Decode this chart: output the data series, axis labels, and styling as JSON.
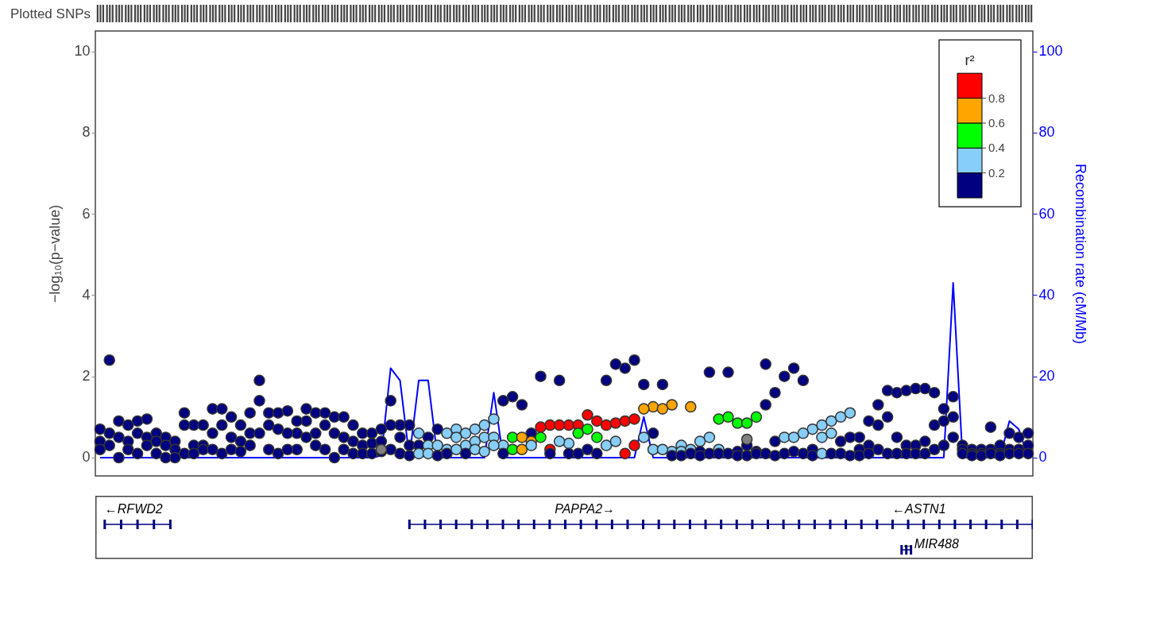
{
  "chart_data": {
    "type": "scatter",
    "ylabel": "−log₁₀(p−value)",
    "y2label": "Recombination rate (cM/Mb)",
    "clabel": "r²",
    "colors": [
      "#000080",
      "#87cefa",
      "#00ff00",
      "#ffa500",
      "#ff0000"
    ],
    "annotations": [
      "Plotted SNPs",
      "←RFWD2",
      "PAPPA2→",
      "←ASTN1",
      "←MIR488",
      "0.2",
      "0.4",
      "0.6",
      "0.8"
    ],
    "categories": [
      null,
      null,
      null,
      null,
      null,
      null,
      null,
      null,
      null,
      null,
      null,
      null,
      null,
      null,
      null,
      null,
      null,
      null,
      null,
      null,
      null,
      null,
      null,
      null,
      null,
      null,
      null,
      null,
      null,
      null,
      null,
      null,
      null,
      null,
      null,
      null,
      null,
      null,
      null,
      null,
      null,
      null,
      null,
      null,
      null,
      null,
      null,
      null,
      null,
      null,
      null,
      null,
      null,
      null,
      null,
      null,
      null,
      null,
      null,
      null,
      null,
      null,
      null,
      null,
      null,
      null,
      null,
      null,
      null,
      null,
      null,
      null,
      null,
      null,
      null,
      null,
      null,
      null,
      null,
      null,
      null,
      null,
      null,
      null,
      null,
      null,
      null,
      null,
      null,
      null,
      null,
      null,
      null,
      null,
      null,
      null,
      null,
      null,
      null,
      null
    ],
    "ylim": [
      -0.45,
      10.5
    ],
    "yticks": [
      0,
      2,
      4,
      6,
      8,
      10
    ],
    "y2lim": [
      -4.5,
      105
    ],
    "y2ticks": [
      0,
      20,
      40,
      60,
      80,
      100
    ],
    "grid": false,
    "marker": "circle",
    "series": [
      {
        "values": [
          0.7,
          2.4,
          0.9,
          0.8,
          0.9,
          0.95,
          0.6,
          0.5,
          0.4,
          1.1,
          0.8,
          0.8,
          1.2,
          1.2,
          1.0,
          0.8,
          1.1,
          1.9,
          1.1,
          1.1,
          1.15,
          0.6,
          1.2,
          1.1,
          1.1,
          1.0,
          1.0,
          0.8,
          0.6,
          0.6,
          0.7,
          1.4,
          0.8,
          0.8,
          0.6,
          0.5,
          0.7,
          0.6,
          0.7,
          0.6,
          0.7,
          0.8,
          0.95,
          1.4,
          1.5,
          1.3,
          0.6,
          2.0,
          0.8,
          1.9,
          0.8,
          0.8,
          1.05,
          0.9,
          1.9,
          2.3,
          2.2,
          2.4,
          1.8,
          1.25,
          1.8,
          1.3,
          0.3,
          1.25,
          0.4,
          2.1,
          0.95,
          2.1,
          0.85,
          0.85,
          1.0,
          2.3,
          1.6,
          2.0,
          2.2,
          1.9,
          0.7,
          0.8,
          0.9,
          1.0,
          1.1,
          0.5,
          0.9,
          1.3,
          1.65,
          1.6,
          1.65,
          1.7,
          1.7,
          1.6,
          1.2,
          1.5,
          0.3,
          0.2,
          0.2,
          0.75,
          0.3,
          0.6,
          0.5,
          0.6
        ],
        "colors": [
          "#000080",
          "#000080",
          "#000080",
          "#000080",
          "#000080",
          "#000080",
          "#000080",
          "#000080",
          "#000080",
          "#000080",
          "#000080",
          "#000080",
          "#000080",
          "#000080",
          "#000080",
          "#000080",
          "#000080",
          "#000080",
          "#000080",
          "#000080",
          "#000080",
          "#000080",
          "#000080",
          "#000080",
          "#000080",
          "#000080",
          "#000080",
          "#000080",
          "#000080",
          "#000080",
          "#000080",
          "#000080",
          "#000080",
          "#000080",
          "#87cefa",
          "#000080",
          "#000080",
          "#87cefa",
          "#87cefa",
          "#87cefa",
          "#87cefa",
          "#87cefa",
          "#87cefa",
          "#000080",
          "#000080",
          "#000080",
          "#000080",
          "#000080",
          "#ff0000",
          "#000080",
          "#ff0000",
          "#ff0000",
          "#ff0000",
          "#ff0000",
          "#000080",
          "#000080",
          "#000080",
          "#000080",
          "#000080",
          "#ffa500",
          "#000080",
          "#ffa500",
          "#87cefa",
          "#ffa500",
          "#87cefa",
          "#000080",
          "#00ff00",
          "#000080",
          "#00ff00",
          "#00ff00",
          "#00ff00",
          "#000080",
          "#000080",
          "#000080",
          "#000080",
          "#000080",
          "#87cefa",
          "#87cefa",
          "#87cefa",
          "#87cefa",
          "#87cefa",
          "#000080",
          "#000080",
          "#000080",
          "#000080",
          "#000080",
          "#000080",
          "#000080",
          "#000080",
          "#000080",
          "#000080",
          "#000080",
          "#000080",
          "#000080",
          "#000080",
          "#000080",
          "#000080",
          "#000080",
          "#000080",
          "#000080"
        ]
      },
      {
        "values": [
          0.4,
          0.6,
          0.5,
          0.4,
          0.6,
          0.5,
          0.4,
          0.3,
          0.2,
          0.8,
          0.3,
          0.3,
          0.6,
          0.8,
          0.5,
          0.4,
          0.6,
          1.4,
          0.8,
          0.7,
          0.6,
          0.2,
          0.9,
          0.6,
          0.8,
          0.6,
          0.5,
          0.4,
          0.3,
          0.35,
          0.4,
          0.8,
          0.5,
          0.3,
          0.3,
          0.3,
          0.3,
          0.2,
          0.5,
          0.3,
          0.4,
          0.5,
          0.5,
          0.3,
          0.5,
          0.5,
          0.4,
          0.75,
          0.2,
          0.8,
          0.35,
          0.6,
          0.7,
          0.5,
          0.8,
          0.85,
          0.9,
          0.95,
          1.2,
          0.6,
          1.2,
          0.15,
          0.15,
          0.2,
          0.15,
          0.5,
          0.2,
          1.0,
          0.15,
          0.3,
          0.15,
          1.3,
          0.4,
          0.5,
          0.5,
          0.6,
          0.2,
          0.5,
          0.6,
          0.4,
          0.5,
          0.2,
          0.3,
          0.8,
          1.0,
          0.5,
          0.3,
          0.3,
          0.4,
          0.8,
          0.9,
          1.0,
          0.2,
          0.1,
          0.1,
          0.2,
          0.1,
          0.2,
          0.2,
          0.3
        ],
        "colors": [
          "#000080",
          "#000080",
          "#000080",
          "#000080",
          "#000080",
          "#000080",
          "#000080",
          "#000080",
          "#000080",
          "#000080",
          "#000080",
          "#000080",
          "#000080",
          "#000080",
          "#000080",
          "#000080",
          "#000080",
          "#000080",
          "#000080",
          "#000080",
          "#000080",
          "#000080",
          "#000080",
          "#000080",
          "#000080",
          "#000080",
          "#000080",
          "#000080",
          "#000080",
          "#000080",
          "#000080",
          "#000080",
          "#000080",
          "#000080",
          "#000080",
          "#87cefa",
          "#87cefa",
          "#87cefa",
          "#87cefa",
          "#87cefa",
          "#87cefa",
          "#87cefa",
          "#87cefa",
          "#87cefa",
          "#00ff00",
          "#ffa500",
          "#ffa500",
          "#ff0000",
          "#ff0000",
          "#ff0000",
          "#87cefa",
          "#00ff00",
          "#00ff00",
          "#00ff00",
          "#ff0000",
          "#ff0000",
          "#ff0000",
          "#ff0000",
          "#ffa500",
          "#000080",
          "#ffa500",
          "#87cefa",
          "#87cefa",
          "#87cefa",
          "#000080",
          "#87cefa",
          "#87cefa",
          "#00ff00",
          "#000080",
          "#000080",
          "#000080",
          "#000080",
          "#000080",
          "#87cefa",
          "#87cefa",
          "#87cefa",
          "#000080",
          "#87cefa",
          "#87cefa",
          "#000080",
          "#000080",
          "#000080",
          "#000080",
          "#000080",
          "#000080",
          "#000080",
          "#000080",
          "#000080",
          "#000080",
          "#000080",
          "#000080",
          "#000080",
          "#000080",
          "#000080",
          "#000080",
          "#000080",
          "#000080",
          "#000080",
          "#000080",
          "#000080"
        ]
      },
      {
        "values": [
          0.2,
          0.3,
          0.0,
          0.2,
          0.1,
          0.3,
          0.1,
          0.0,
          0.0,
          0.1,
          0.1,
          0.2,
          0.2,
          0.1,
          0.2,
          0.15,
          0.3,
          0.6,
          0.2,
          0.1,
          0.2,
          0.9,
          0.5,
          0.3,
          0.2,
          0.0,
          0.2,
          0.1,
          0.1,
          0.1,
          0.15,
          0.2,
          0.1,
          0.05,
          0.1,
          0.1,
          0.05,
          0.1,
          0.2,
          0.1,
          0.2,
          0.15,
          0.3,
          0.1,
          0.2,
          0.2,
          0.3,
          0.5,
          0.1,
          0.4,
          0.1,
          0.1,
          0.2,
          0.1,
          0.3,
          0.4,
          0.1,
          0.3,
          0.5,
          0.2,
          0.2,
          0.05,
          0.05,
          0.1,
          0.05,
          0.1,
          0.1,
          0.1,
          0.05,
          0.05,
          0.1,
          0.1,
          0.05,
          0.1,
          0.15,
          0.1,
          0.05,
          0.1,
          0.1,
          0.1,
          0.05,
          0.05,
          0.1,
          0.2,
          0.1,
          0.1,
          0.1,
          0.1,
          0.1,
          0.2,
          0.3,
          0.5,
          0.1,
          0.05,
          0.05,
          0.1,
          0.05,
          0.1,
          0.1,
          0.1
        ],
        "colors": [
          "#000080",
          "#000080",
          "#000080",
          "#000080",
          "#000080",
          "#000080",
          "#000080",
          "#000080",
          "#000080",
          "#000080",
          "#000080",
          "#000080",
          "#000080",
          "#000080",
          "#000080",
          "#000080",
          "#000080",
          "#000080",
          "#000080",
          "#000080",
          "#000080",
          "#000080",
          "#000080",
          "#000080",
          "#000080",
          "#000080",
          "#000080",
          "#000080",
          "#000080",
          "#000080",
          "#000080",
          "#000080",
          "#000080",
          "#000080",
          "#87cefa",
          "#87cefa",
          "#000080",
          "#000080",
          "#87cefa",
          "#000080",
          "#87cefa",
          "#87cefa",
          "#87cefa",
          "#000080",
          "#00ff00",
          "#ffa500",
          "#87cefa",
          "#00ff00",
          "#000080",
          "#87cefa",
          "#000080",
          "#000080",
          "#000080",
          "#000080",
          "#87cefa",
          "#87cefa",
          "#ff0000",
          "#ff0000",
          "#87cefa",
          "#87cefa",
          "#87cefa",
          "#000080",
          "#000080",
          "#000080",
          "#000080",
          "#000080",
          "#000080",
          "#000080",
          "#000080",
          "#000080",
          "#000080",
          "#000080",
          "#000080",
          "#000080",
          "#000080",
          "#000080",
          "#000080",
          "#87cefa",
          "#000080",
          "#000080",
          "#000080",
          "#000080",
          "#000080",
          "#000080",
          "#000080",
          "#000080",
          "#000080",
          "#000080",
          "#000080",
          "#000080",
          "#000080",
          "#000080",
          "#000080",
          "#000080",
          "#000080",
          "#000080",
          "#000080",
          "#000080",
          "#000080",
          "#000080"
        ]
      },
      {
        "color": "#808080",
        "values": [
          null,
          null,
          null,
          null,
          null,
          null,
          null,
          null,
          null,
          null,
          null,
          null,
          null,
          null,
          null,
          null,
          null,
          null,
          null,
          null,
          null,
          null,
          null,
          null,
          null,
          null,
          null,
          null,
          null,
          null,
          0.2,
          null,
          null,
          null,
          null,
          null,
          null,
          null,
          null,
          null,
          null,
          null,
          null,
          null,
          null,
          null,
          null,
          null,
          null,
          null,
          null,
          null,
          null,
          null,
          null,
          null,
          null,
          null,
          null,
          null,
          null,
          null,
          null,
          null,
          null,
          null,
          null,
          null,
          null,
          0.45,
          null,
          null,
          null,
          null,
          null,
          null,
          null,
          null,
          null,
          null,
          null,
          null,
          null,
          null,
          null,
          null,
          null,
          null,
          null,
          null,
          null,
          null,
          null,
          null,
          null,
          null,
          null,
          null,
          null,
          null
        ]
      },
      {
        "type": "line",
        "axis": "y2",
        "color": "#0000ff",
        "marker": "none",
        "values": [
          0,
          0,
          0,
          0,
          0,
          0,
          0,
          0,
          0,
          0,
          0,
          0,
          0,
          0,
          0,
          0,
          0,
          0,
          0,
          0,
          0,
          0,
          0,
          0,
          0,
          0,
          0,
          0,
          0,
          0,
          0.5,
          22,
          19,
          0,
          19,
          19,
          0,
          0,
          0,
          0,
          0,
          0,
          16,
          0,
          0,
          0,
          0,
          0,
          0,
          0,
          0,
          0,
          0,
          0,
          0,
          0,
          0,
          0,
          10,
          0,
          0,
          0,
          0,
          0,
          0,
          0,
          0,
          0,
          0,
          0,
          0,
          0,
          0,
          0,
          0,
          0,
          0,
          0,
          0,
          0,
          0,
          0,
          0,
          0,
          0,
          0,
          0,
          0,
          0,
          0,
          0,
          43,
          0,
          0,
          0,
          0,
          0,
          9,
          7,
          0
        ]
      }
    ]
  }
}
